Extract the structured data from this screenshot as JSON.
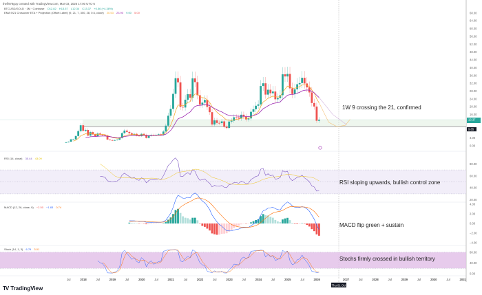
{
  "header": {
    "credit": "thefi978guy created with TradingView.com, Mar 03, 2026 17:00 UTC-5",
    "symbol": "BTCUSD/GOLD · 1M · Coinbase",
    "ohlc": {
      "open": "O12.82",
      "high": "H13.57",
      "low": "L12.34",
      "close": "C13.37",
      "change": "+0.56 (+4.38%)"
    },
    "ema_indicator": "EMA 9/21 Crossover ETA + Projection (Offset Label) (9, 21, 7, 300, 28, 0.6, close)",
    "ema_values": [
      "20.53",
      "23.90",
      "9.00",
      "5.00"
    ]
  },
  "indicators": {
    "rsi": {
      "label": "RSI (14, close)",
      "values": [
        "35.44",
        "43.09"
      ]
    },
    "macd": {
      "label": "MACD (12, 26, close, 9)",
      "values": [
        "−2.50",
        "−1.83",
        "0.74"
      ]
    },
    "stoch": {
      "label": "Stoch (14, 1, 3)",
      "values": [
        "6.79",
        "3.01"
      ]
    }
  },
  "annotations": {
    "main": "1W 9 crossing the 21, confirmed",
    "rsi": "RSI sloping upwards, bullish control zone",
    "macd": "MACD flip green + sustain",
    "stoch": "Stochs firmly crossed in bullish territory"
  },
  "price_labels": {
    "last": "13.37",
    "level": "9.85"
  },
  "crosshair_date": "Thu 01 Oct",
  "brand": "TradingView",
  "colors": {
    "up": "#26a69a",
    "down": "#ef5350",
    "ema_fast": "#f5a623",
    "ema_slow": "#9c27b0",
    "rsi": "#7e57c2",
    "macd": "#2962ff",
    "signal": "#ff6d00",
    "stoch_band": "#e1bee7"
  },
  "chart_data": {
    "type": "candlestick",
    "title": "BTCUSD/GOLD 1M",
    "start_month": "2017-06",
    "closes": [
      1.8,
      2.1,
      3.3,
      3.3,
      5.0,
      7.5,
      10.5,
      7.7,
      8.1,
      5.2,
      7.0,
      5.8,
      4.9,
      6.3,
      5.7,
      5.5,
      5.2,
      3.2,
      2.9,
      2.6,
      2.9,
      3.1,
      4.0,
      6.5,
      7.8,
      7.1,
      6.4,
      5.7,
      6.1,
      5.2,
      4.9,
      6.1,
      5.6,
      4.0,
      5.1,
      5.6,
      5.4,
      5.6,
      5.9,
      5.6,
      7.3,
      10.3,
      15.4,
      18.9,
      26.6,
      34.6,
      32.5,
      19.9,
      19.6,
      23.6,
      26.4,
      24.6,
      34.5,
      32.6,
      25.9,
      21.1,
      22.1,
      23.5,
      19.9,
      17.2,
      10.9,
      13.0,
      11.7,
      11.6,
      12.5,
      9.7,
      9.1,
      12.4,
      12.8,
      14.6,
      14.5,
      13.9,
      15.9,
      14.9,
      13.5,
      14.0,
      17.4,
      18.7,
      20.5,
      21.2,
      30.6,
      32.0,
      26.2,
      28.7,
      26.9,
      27.8,
      23.8,
      24.4,
      25.9,
      36.6,
      35.5,
      36.8,
      29.4,
      26.5,
      28.9,
      31.5,
      32.1,
      34.8,
      31.9,
      29.9,
      27.3,
      21.9,
      20.1,
      12.8,
      13.37
    ],
    "price_axis": [
      "68.00",
      "64.00",
      "60.00",
      "56.00",
      "52.00",
      "48.00",
      "44.00",
      "40.00",
      "36.00",
      "32.00",
      "28.00",
      "24.00",
      "20.00",
      "16.00",
      "4.00",
      "0.00"
    ],
    "price_ticks": [
      68,
      64,
      60,
      56,
      52,
      48,
      44,
      40,
      36,
      32,
      28,
      24,
      20,
      16,
      4,
      0
    ],
    "rsi_axis": {
      "labels": [
        "80.00",
        "60.00",
        "40.00",
        "20.00"
      ],
      "ticks": [
        80,
        60,
        40,
        20
      ],
      "band": [
        30,
        70
      ]
    },
    "macd_axis": {
      "labels": [
        "4.00",
        "2.00",
        "0.00",
        "−2.00",
        "−4.00"
      ],
      "ticks": [
        4,
        2,
        0,
        -2,
        -4
      ]
    },
    "stoch_axis": {
      "labels": [
        "80.00",
        "40.00",
        "0.00"
      ],
      "ticks": [
        80,
        40,
        0
      ],
      "band": [
        20,
        80
      ]
    },
    "x_axis": [
      "Jul",
      "2018",
      "Jul",
      "2019",
      "Jul",
      "2020",
      "Jul",
      "2021",
      "Jul",
      "2022",
      "Jul",
      "2023",
      "Jul",
      "2024",
      "Jul",
      "2025",
      "Jul",
      "2026",
      "2027",
      "Jul",
      "2028",
      "Jul",
      "2029",
      "Jul",
      "2030",
      "Jul",
      "2031"
    ],
    "x_axis_years": [
      2017.5,
      2018,
      2018.5,
      2019,
      2019.5,
      2020,
      2020.5,
      2021,
      2021.5,
      2022,
      2022.5,
      2023,
      2023.5,
      2024,
      2024.5,
      2025,
      2025.5,
      2026,
      2027,
      2027.5,
      2028,
      2028.5,
      2029,
      2029.5,
      2030,
      2030.5,
      2031
    ],
    "ylim": [
      0,
      70
    ]
  }
}
